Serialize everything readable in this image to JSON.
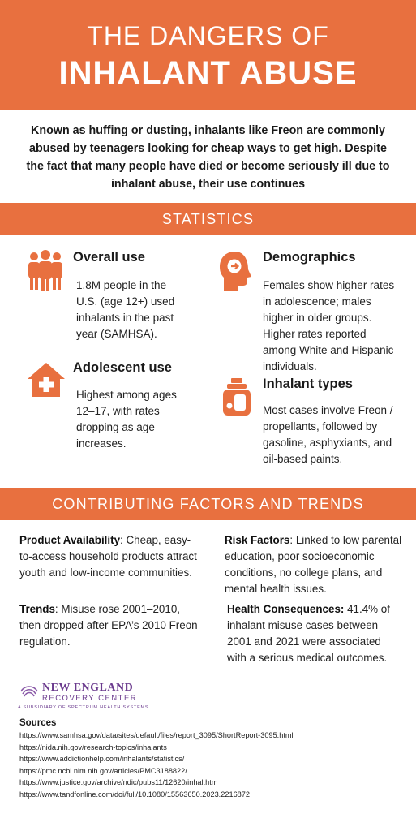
{
  "header": {
    "title_line1": "THE DANGERS OF",
    "title_line2": "INHALANT ABUSE"
  },
  "intro": "Known as huffing or dusting, inhalants like Freon are commonly abused by teenagers looking for cheap ways to get high. Despite the fact that many people have died or become seriously ill due to inhalant abuse, their use continues",
  "statistics": {
    "heading": "STATISTICS",
    "items": [
      {
        "icon": "people-group-icon",
        "title": "Overall use",
        "text": "1.8M people in the U.S. (age 12+) used inhalants in the past year (SAMHSA)."
      },
      {
        "icon": "head-brain-icon",
        "title": "Demographics",
        "text": "Females show higher rates in adolescence; males higher in older groups. Higher rates reported among White and Hispanic individuals."
      },
      {
        "icon": "house-cross-icon",
        "title": "Adolescent use",
        "text": "Highest among ages 12–17, with rates dropping as age increases."
      },
      {
        "icon": "spray-can-icon",
        "title": "Inhalant types",
        "text": "Most cases involve Freon / propellants, followed by gasoline, asphyxiants, and oil-based paints."
      }
    ]
  },
  "factors": {
    "heading": "CONTRIBUTING FACTORS AND TRENDS",
    "items": [
      {
        "label": "Product Availability",
        "text": ": Cheap, easy-to-access household products attract youth and low-income communities."
      },
      {
        "label": "Risk Factors",
        "text": ": Linked to low parental education, poor socioeconomic conditions, no college plans, and mental health issues."
      },
      {
        "label": "Trends",
        "text": ": Misuse rose 2001–2010, then dropped after EPA’s 2010 Freon regulation."
      },
      {
        "label": "Health Consequences:",
        "text": " 41.4% of inhalant misuse cases between 2001 and 2021 were associated with a serious medical outcomes."
      }
    ]
  },
  "logo": {
    "name": "NEW ENGLAND",
    "sub": "RECOVERY CENTER",
    "tagline": "A SUBSIDIARY OF SPECTRUM HEALTH SYSTEMS"
  },
  "sources": {
    "heading": "Sources",
    "links": [
      "https://www.samhsa.gov/data/sites/default/files/report_3095/ShortReport-3095.html",
      "https://nida.nih.gov/research-topics/inhalants",
      "https://www.addictionhelp.com/inhalants/statistics/",
      "https://pmc.ncbi.nlm.nih.gov/articles/PMC3188822/",
      "https://www.justice.gov/archive/ndic/pubs11/12620/inhal.htm",
      "https://www.tandfonline.com/doi/full/10.1080/15563650.2023.2216872"
    ]
  },
  "colors": {
    "accent": "#e8703f",
    "brand_purple": "#6b3b8e"
  }
}
